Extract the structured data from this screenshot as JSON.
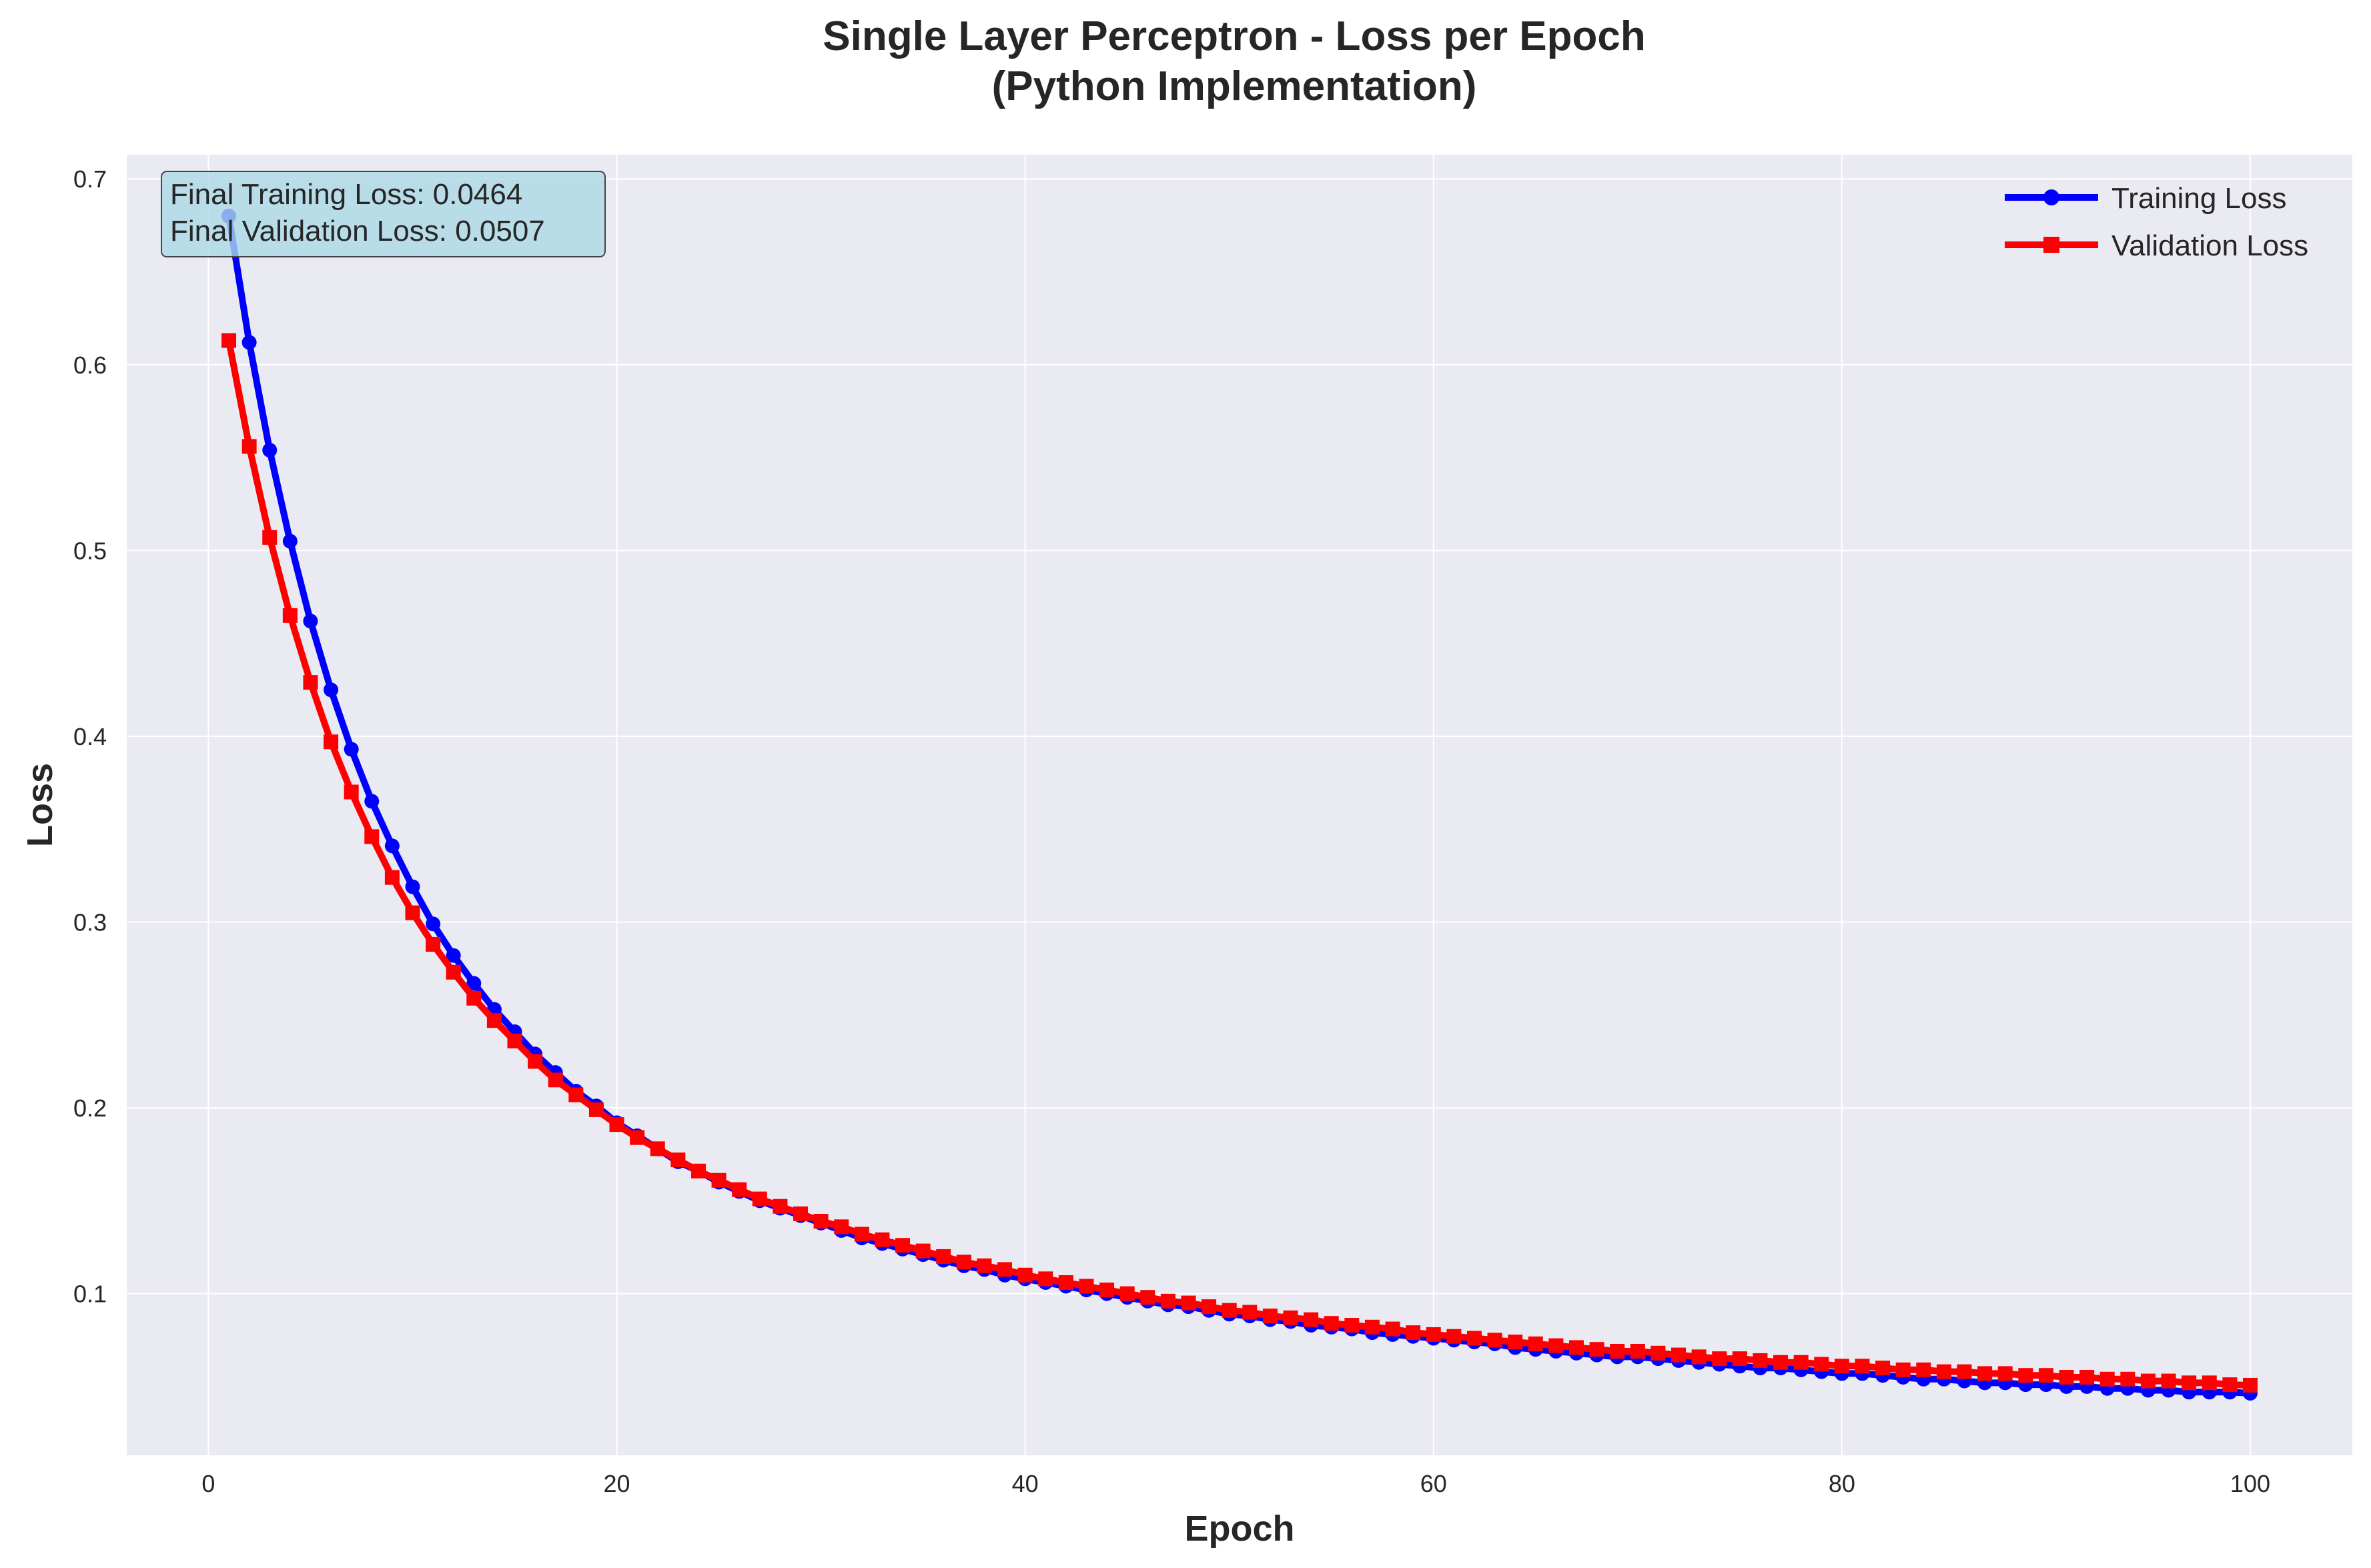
{
  "chart_data": {
    "type": "line",
    "title_lines": [
      "Single Layer Perceptron - Loss per Epoch",
      "(Python Implementation)"
    ],
    "xlabel": "Epoch",
    "ylabel": "Loss",
    "xlim": [
      -4,
      105
    ],
    "ylim": [
      0.013,
      0.713
    ],
    "x_ticks": [
      0,
      20,
      40,
      60,
      80,
      100
    ],
    "y_ticks": [
      0.1,
      0.2,
      0.3,
      0.4,
      0.5,
      0.6,
      0.7
    ],
    "x_tick_labels": [
      "0",
      "20",
      "40",
      "60",
      "80",
      "100"
    ],
    "y_tick_labels": [
      "0.1",
      "0.2",
      "0.3",
      "0.4",
      "0.5",
      "0.6",
      "0.7"
    ],
    "grid": true,
    "legend_position": "top-right",
    "x": [
      1,
      2,
      3,
      4,
      5,
      6,
      7,
      8,
      9,
      10,
      11,
      12,
      13,
      14,
      15,
      16,
      17,
      18,
      19,
      20,
      21,
      22,
      23,
      24,
      25,
      26,
      27,
      28,
      29,
      30,
      31,
      32,
      33,
      34,
      35,
      36,
      37,
      38,
      39,
      40,
      41,
      42,
      43,
      44,
      45,
      46,
      47,
      48,
      49,
      50,
      51,
      52,
      53,
      54,
      55,
      56,
      57,
      58,
      59,
      60,
      61,
      62,
      63,
      64,
      65,
      66,
      67,
      68,
      69,
      70,
      71,
      72,
      73,
      74,
      75,
      76,
      77,
      78,
      79,
      80,
      81,
      82,
      83,
      84,
      85,
      86,
      87,
      88,
      89,
      90,
      91,
      92,
      93,
      94,
      95,
      96,
      97,
      98,
      99,
      100
    ],
    "series": [
      {
        "name": "Training Loss",
        "color": "#0000ff",
        "marker": "circle",
        "values": [
          0.68,
          0.612,
          0.554,
          0.505,
          0.462,
          0.425,
          0.393,
          0.365,
          0.341,
          0.319,
          0.299,
          0.282,
          0.267,
          0.253,
          0.241,
          0.229,
          0.219,
          0.209,
          0.201,
          0.192,
          0.185,
          0.178,
          0.171,
          0.166,
          0.16,
          0.155,
          0.15,
          0.146,
          0.142,
          0.138,
          0.134,
          0.13,
          0.127,
          0.124,
          0.121,
          0.118,
          0.115,
          0.113,
          0.11,
          0.108,
          0.106,
          0.104,
          0.102,
          0.1,
          0.098,
          0.096,
          0.094,
          0.093,
          0.091,
          0.089,
          0.088,
          0.086,
          0.085,
          0.083,
          0.082,
          0.081,
          0.079,
          0.078,
          0.077,
          0.076,
          0.075,
          0.074,
          0.073,
          0.071,
          0.07,
          0.069,
          0.068,
          0.067,
          0.066,
          0.066,
          0.065,
          0.064,
          0.063,
          0.062,
          0.061,
          0.06,
          0.06,
          0.059,
          0.058,
          0.057,
          0.057,
          0.056,
          0.055,
          0.054,
          0.054,
          0.053,
          0.052,
          0.052,
          0.051,
          0.051,
          0.05,
          0.05,
          0.049,
          0.049,
          0.048,
          0.048,
          0.047,
          0.047,
          0.047,
          0.0464
        ]
      },
      {
        "name": "Validation Loss",
        "color": "#ff0000",
        "marker": "square",
        "values": [
          0.613,
          0.556,
          0.507,
          0.465,
          0.429,
          0.397,
          0.37,
          0.346,
          0.324,
          0.305,
          0.288,
          0.273,
          0.259,
          0.247,
          0.236,
          0.225,
          0.215,
          0.207,
          0.199,
          0.191,
          0.184,
          0.178,
          0.172,
          0.166,
          0.161,
          0.156,
          0.151,
          0.147,
          0.143,
          0.139,
          0.136,
          0.132,
          0.129,
          0.126,
          0.123,
          0.12,
          0.117,
          0.115,
          0.113,
          0.11,
          0.108,
          0.106,
          0.104,
          0.102,
          0.1,
          0.098,
          0.096,
          0.095,
          0.093,
          0.091,
          0.09,
          0.088,
          0.087,
          0.086,
          0.084,
          0.083,
          0.082,
          0.081,
          0.079,
          0.078,
          0.077,
          0.076,
          0.075,
          0.074,
          0.073,
          0.072,
          0.071,
          0.07,
          0.069,
          0.069,
          0.068,
          0.067,
          0.066,
          0.065,
          0.065,
          0.064,
          0.063,
          0.063,
          0.062,
          0.061,
          0.061,
          0.06,
          0.059,
          0.059,
          0.058,
          0.058,
          0.057,
          0.057,
          0.056,
          0.056,
          0.055,
          0.055,
          0.054,
          0.054,
          0.053,
          0.053,
          0.052,
          0.052,
          0.051,
          0.0507
        ]
      }
    ],
    "annotation": {
      "lines": [
        "Final Training Loss: 0.0464",
        "Final Validation Loss: 0.0507"
      ],
      "background": "#add8e6"
    }
  },
  "colors": {
    "plot_background": "#eaeaf2",
    "grid": "#ffffff",
    "text": "#262626"
  }
}
